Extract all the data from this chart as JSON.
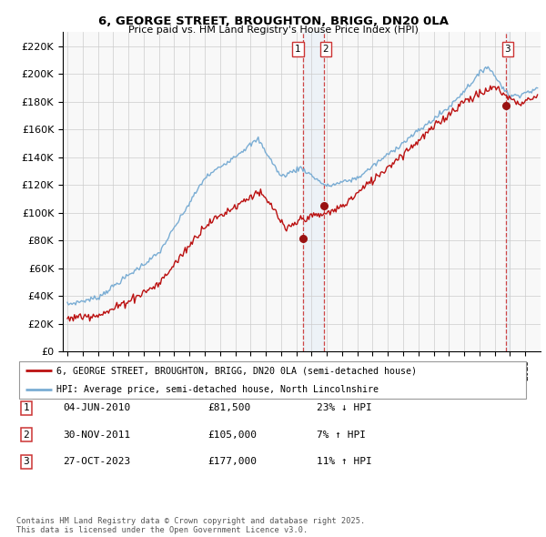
{
  "title1": "6, GEORGE STREET, BROUGHTON, BRIGG, DN20 0LA",
  "title2": "Price paid vs. HM Land Registry's House Price Index (HPI)",
  "legend_line1": "6, GEORGE STREET, BROUGHTON, BRIGG, DN20 0LA (semi-detached house)",
  "legend_line2": "HPI: Average price, semi-detached house, North Lincolnshire",
  "transaction_labels": [
    "1",
    "2",
    "3"
  ],
  "transaction_dates": [
    "04-JUN-2010",
    "30-NOV-2011",
    "27-OCT-2023"
  ],
  "transaction_prices": [
    81500,
    105000,
    177000
  ],
  "transaction_hpi_text": [
    "23% ↓ HPI",
    "7% ↑ HPI",
    "11% ↑ HPI"
  ],
  "footnote": "Contains HM Land Registry data © Crown copyright and database right 2025.\nThis data is licensed under the Open Government Licence v3.0.",
  "hpi_color": "#7aadd4",
  "price_color": "#bb1111",
  "marker_color": "#991111",
  "vline_color": "#cc3333",
  "shade_color": "#d0e4f5",
  "background_chart": "#f8f8f8",
  "grid_color": "#cccccc",
  "ylim": [
    0,
    230000
  ],
  "xlim": [
    1994.7,
    2026.0
  ],
  "ytick_step": 20000
}
